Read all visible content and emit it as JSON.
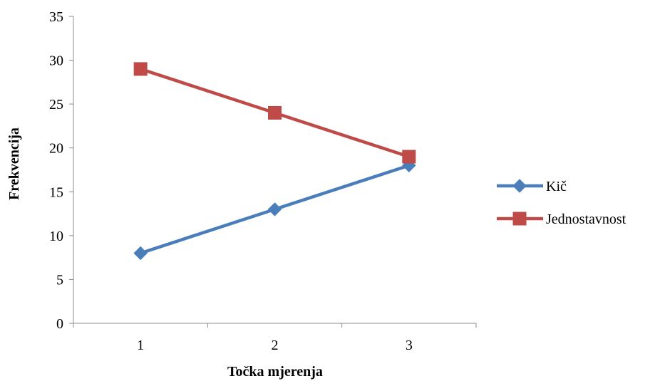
{
  "chart_data": {
    "type": "line",
    "categories": [
      "1",
      "2",
      "3"
    ],
    "series": [
      {
        "name": "Kič",
        "values": [
          8,
          13,
          18
        ],
        "color": "#4a7ebb",
        "marker": "diamond"
      },
      {
        "name": "Jednostavnost",
        "values": [
          29,
          24,
          19
        ],
        "color": "#be4b48",
        "marker": "square"
      }
    ],
    "xlabel": "Točka mjerenja",
    "ylabel": "Frekvencija",
    "ylim": [
      0,
      35
    ],
    "yticks": [
      0,
      5,
      10,
      15,
      20,
      25,
      30,
      35
    ],
    "grid": false,
    "legend": "right"
  }
}
